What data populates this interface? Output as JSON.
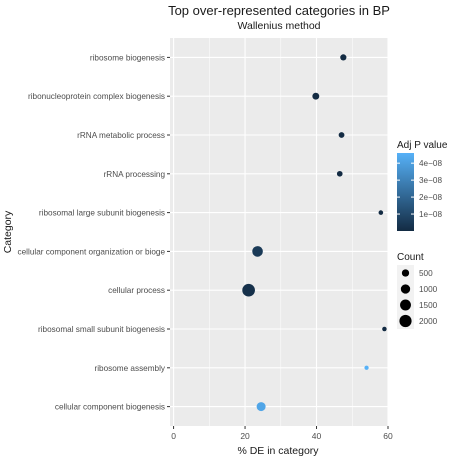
{
  "chart_data": {
    "type": "scatter",
    "title": "Top over-represented categories in BP",
    "subtitle": "Wallenius  method",
    "xlabel": "% DE in category",
    "ylabel": "Category",
    "xlim": [
      -1,
      60
    ],
    "xticks": [
      0,
      20,
      40,
      60
    ],
    "grid": true,
    "categories": [
      "ribosome biogenesis",
      "ribonucleoprotein complex biogenesis",
      "rRNA metabolic process",
      "rRNA processing",
      "ribosomal large subunit biogenesis",
      "cellular component organization or bioge",
      "cellular process",
      "ribosomal small subunit biogenesis",
      "ribosome assembly",
      "cellular component biogenesis"
    ],
    "points": [
      {
        "category": "ribosome biogenesis",
        "x": 47.5,
        "count": 300,
        "adj_p": 1e-12
      },
      {
        "category": "ribonucleoprotein complex biogenesis",
        "x": 39.8,
        "count": 420,
        "adj_p": 1e-12
      },
      {
        "category": "rRNA metabolic process",
        "x": 47.0,
        "count": 240,
        "adj_p": 1e-12
      },
      {
        "category": "rRNA processing",
        "x": 46.5,
        "count": 220,
        "adj_p": 1e-12
      },
      {
        "category": "ribosomal large subunit biogenesis",
        "x": 58.0,
        "count": 100,
        "adj_p": 1e-12
      },
      {
        "category": "cellular component organization or bioge",
        "x": 23.5,
        "count": 1400,
        "adj_p": 5e-09
      },
      {
        "category": "cellular process",
        "x": 21.0,
        "count": 2200,
        "adj_p": 2e-09
      },
      {
        "category": "ribosomal small subunit biogenesis",
        "x": 59.0,
        "count": 90,
        "adj_p": 1e-12
      },
      {
        "category": "ribosome assembly",
        "x": 54.0,
        "count": 70,
        "adj_p": 4.6e-08
      },
      {
        "category": "cellular component biogenesis",
        "x": 24.5,
        "count": 900,
        "adj_p": 4.2e-08
      }
    ],
    "legend_color": {
      "title": "Adj P value",
      "labels": [
        "4e−08",
        "3e−08",
        "2e−08",
        "1e−08"
      ],
      "values": [
        4e-08,
        3e-08,
        2e-08,
        1e-08
      ],
      "range": [
        0,
        4.6e-08
      ],
      "low_color": "#132b43",
      "high_color": "#56b1f7",
      "placement": "right"
    },
    "legend_size": {
      "title": "Count",
      "labels": [
        "500",
        "1000",
        "1500",
        "2000"
      ],
      "values": [
        500,
        1000,
        1500,
        2000
      ],
      "placement": "right"
    },
    "panel_color": "#ebebeb",
    "grid_color": "#ffffff"
  }
}
